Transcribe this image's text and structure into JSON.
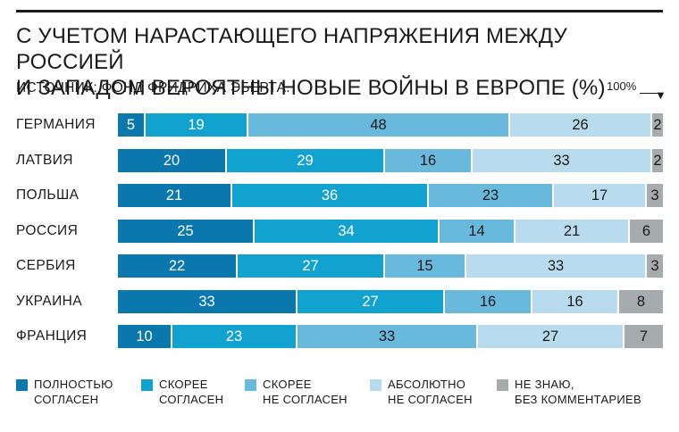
{
  "title_line1": "С УЧЕТОМ НАРАСТАЮЩЕГО НАПРЯЖЕНИЯ МЕЖДУ РОССИЕЙ",
  "title_line2": "И ЗАПАДОМ ВЕРОЯТНЫ НОВЫЕ ВОЙНЫ В ЕВРОПЕ (%)",
  "source": "ИСТОЧНИК: ФОНД ФРИДРИХА ЭБЕРТА.",
  "reference_label": "100%",
  "colors": {
    "full_agree": "#0a77ad",
    "rather_agree": "#12a2cf",
    "rather_disagree": "#69b9dc",
    "absolutely_disagree": "#b8dcee",
    "dont_know": "#a6abad"
  },
  "chart_data": {
    "type": "bar",
    "stacked": true,
    "orientation": "horizontal",
    "categories": [
      "ГЕРМАНИЯ",
      "ЛАТВИЯ",
      "ПОЛЬША",
      "РОССИЯ",
      "СЕРБИЯ",
      "УКРАИНА",
      "ФРАНЦИЯ"
    ],
    "series": [
      {
        "name_line1": "ПОЛНОСТЬЮ",
        "name_line2": "СОГЛАСЕН",
        "color_key": "full_agree",
        "values": [
          5,
          20,
          21,
          25,
          22,
          33,
          10
        ]
      },
      {
        "name_line1": "СКОРЕЕ",
        "name_line2": "СОГЛАСЕН",
        "color_key": "rather_agree",
        "values": [
          19,
          29,
          36,
          34,
          27,
          27,
          23
        ]
      },
      {
        "name_line1": "СКОРЕЕ",
        "name_line2": "НЕ СОГЛАСЕН",
        "color_key": "rather_disagree",
        "values": [
          48,
          16,
          23,
          14,
          15,
          16,
          33
        ]
      },
      {
        "name_line1": "АБСОЛЮТНО",
        "name_line2": "НЕ СОГЛАСЕН",
        "color_key": "absolutely_disagree",
        "values": [
          26,
          33,
          17,
          21,
          33,
          16,
          27
        ]
      },
      {
        "name_line1": "НЕ ЗНАЮ,",
        "name_line2": "БЕЗ КОММЕНТАРИЕВ",
        "color_key": "dont_know",
        "values": [
          2,
          2,
          3,
          6,
          3,
          8,
          7
        ]
      }
    ],
    "xlim": [
      0,
      100
    ]
  }
}
